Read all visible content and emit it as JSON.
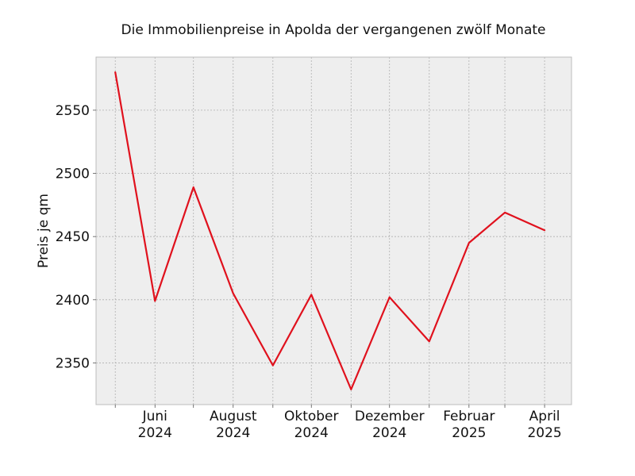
{
  "chart_data": {
    "type": "line",
    "title": "Die Immobilienpreise in Apolda der vergangenen zwölf Monate",
    "xlabel": "",
    "ylabel": "Preis je qm",
    "x": [
      "2024-05",
      "2024-06",
      "2024-07",
      "2024-08",
      "2024-09",
      "2024-10",
      "2024-11",
      "2024-12",
      "2025-01",
      "2025-02",
      "2025-03",
      "2025-04"
    ],
    "series": [
      {
        "values": [
          2580,
          2399,
          2489,
          2405,
          2348,
          2404,
          2329,
          2402,
          2367,
          2445,
          2469,
          2455
        ]
      }
    ],
    "xticks": [
      {
        "x": "2024-05",
        "label": ""
      },
      {
        "x": "2024-06",
        "label": [
          "Juni",
          "2024"
        ]
      },
      {
        "x": "2024-07",
        "label": ""
      },
      {
        "x": "2024-08",
        "label": [
          "August",
          "2024"
        ]
      },
      {
        "x": "2024-09",
        "label": ""
      },
      {
        "x": "2024-10",
        "label": [
          "Oktober",
          "2024"
        ]
      },
      {
        "x": "2024-11",
        "label": ""
      },
      {
        "x": "2024-12",
        "label": [
          "Dezember",
          "2024"
        ]
      },
      {
        "x": "2025-01",
        "label": ""
      },
      {
        "x": "2025-02",
        "label": [
          "Februar",
          "2025"
        ]
      },
      {
        "x": "2025-03",
        "label": ""
      },
      {
        "x": "2025-04",
        "label": [
          "April",
          "2025"
        ]
      }
    ],
    "yticks": [
      2350,
      2400,
      2450,
      2500,
      2550
    ],
    "ylim": [
      2317,
      2592
    ],
    "xlim": [
      "2024-04-16",
      "2025-04-22"
    ],
    "grid": true,
    "colors": {
      "line": "#e0111d",
      "plot_bg": "#eeeeee",
      "grid": "#b0b0b0",
      "frame": "#bcbcbc"
    }
  }
}
